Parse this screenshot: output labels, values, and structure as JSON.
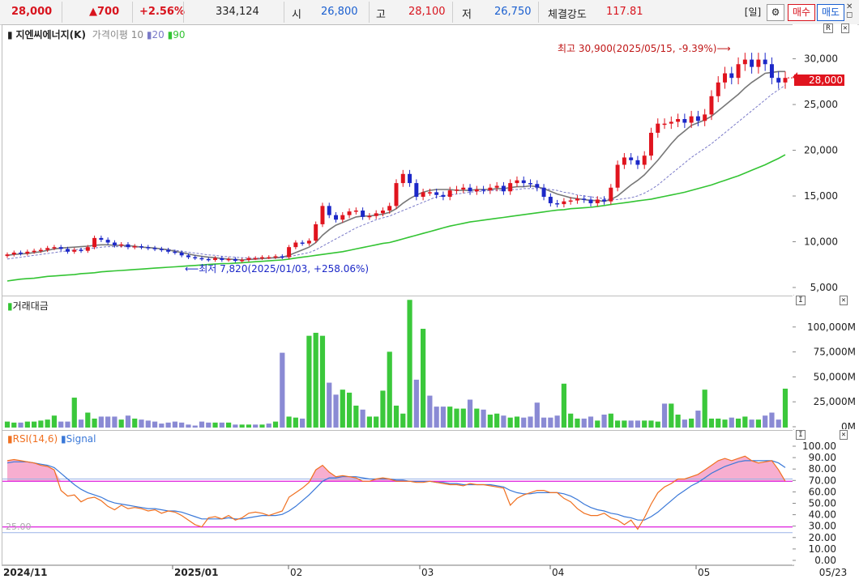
{
  "top": {
    "price": "28,000",
    "change": "▲700",
    "pct": "+2.56%",
    "volume": "334,124",
    "open_label": "시",
    "open": "26,800",
    "high_label": "고",
    "high": "28,100",
    "low_label": "저",
    "low": "26,750",
    "strength_label": "체결강도",
    "strength": "117.81",
    "period": "[일]",
    "gear_icon": "gear-icon",
    "buy": "매수",
    "sell": "매도"
  },
  "legend": {
    "name": "지엔씨에너지(K)",
    "ma_label": "가격이평 10",
    "ma20": "20",
    "ma90": "90",
    "volume_title": "거래대금",
    "rsi_title": "RSI(14,6)",
    "signal_title": "Signal"
  },
  "annotations": {
    "high_note": "최고 30,900(2025/05/15, -9.39%)⟶",
    "low_note": "⟵최저 7,820(2025/01/03, +258.06%)",
    "rsi_level": "25.00",
    "current_price_tag": "28,000"
  },
  "colors": {
    "up": "#e0141e",
    "down": "#1c28c8",
    "ma10": "#777777",
    "ma20": "#7a7ac8",
    "ma90": "#33c433",
    "vol_up": "#3bc83b",
    "vol_down": "#8a8ad4",
    "rsi": "#f07020",
    "signal": "#3a78d8",
    "band": "#e030e0",
    "fill": "#f6a0c8"
  },
  "chart_data": [
    {
      "type": "candlestick",
      "title": "지엔씨에너지(K)",
      "ylim": [
        5000,
        32000
      ],
      "yticks": [
        "30,000",
        "25,000",
        "20,000",
        "15,000",
        "10,000",
        "5,000"
      ],
      "xticks": [
        "2024/11",
        "2025/01",
        "02",
        "03",
        "04",
        "05",
        "05/23"
      ],
      "close": [
        8700,
        8900,
        8800,
        9000,
        9100,
        9200,
        9400,
        9500,
        9300,
        9000,
        9200,
        9100,
        9500,
        10500,
        10300,
        10000,
        9700,
        9800,
        9500,
        9600,
        9500,
        9400,
        9300,
        9200,
        9000,
        8900,
        8600,
        8400,
        8300,
        8200,
        8100,
        8300,
        8100,
        8200,
        8000,
        8100,
        8300,
        8300,
        8400,
        8400,
        8500,
        8400,
        9500,
        10000,
        9900,
        10200,
        12000,
        14000,
        13000,
        12500,
        13000,
        13400,
        13500,
        12800,
        12900,
        13200,
        13500,
        14000,
        16500,
        17500,
        16500,
        15000,
        15500,
        15500,
        15200,
        15000,
        15700,
        15800,
        16000,
        15600,
        15800,
        15700,
        16000,
        16200,
        15600,
        16500,
        16800,
        16500,
        16400,
        16000,
        15000,
        14300,
        14200,
        14500,
        14600,
        14800,
        14700,
        14300,
        14700,
        14500,
        16000,
        18500,
        19300,
        19000,
        18500,
        19500,
        22000,
        23000,
        23000,
        23200,
        23500,
        23100,
        23800,
        23300,
        24000,
        26000,
        27500,
        28500,
        28000,
        29500,
        30000,
        29200,
        30000,
        29500,
        28000,
        27500,
        28000
      ],
      "ma10": [
        8600,
        8700,
        8750,
        8800,
        8900,
        9000,
        9150,
        9300,
        9400,
        9450,
        9500,
        9550,
        9600,
        9700,
        9750,
        9750,
        9700,
        9700,
        9650,
        9600,
        9500,
        9450,
        9400,
        9300,
        9200,
        9050,
        8900,
        8750,
        8600,
        8500,
        8400,
        8350,
        8250,
        8200,
        8150,
        8100,
        8150,
        8200,
        8250,
        8300,
        8350,
        8400,
        8600,
        8900,
        9200,
        9500,
        10000,
        10800,
        11400,
        11900,
        12200,
        12500,
        12800,
        12900,
        12900,
        13000,
        13100,
        13300,
        13700,
        14300,
        14800,
        15200,
        15500,
        15700,
        15800,
        15800,
        15800,
        15700,
        15700,
        15700,
        15800,
        15800,
        15800,
        15900,
        15900,
        16000,
        16100,
        16100,
        16200,
        16100,
        15900,
        15600,
        15300,
        15100,
        14900,
        14800,
        14700,
        14600,
        14600,
        14500,
        14700,
        15100,
        15700,
        16300,
        16800,
        17400,
        18200,
        19000,
        19900,
        20800,
        21600,
        22200,
        22800,
        23100,
        23400,
        23800,
        24400,
        25000,
        25600,
        26200,
        26900,
        27500,
        28000,
        28500,
        28600,
        28700,
        28700
      ],
      "ma20": [
        8200,
        8300,
        8400,
        8500,
        8600,
        8700,
        8800,
        8900,
        9000,
        9100,
        9200,
        9300,
        9350,
        9400,
        9500,
        9550,
        9550,
        9550,
        9550,
        9500,
        9500,
        9450,
        9400,
        9300,
        9250,
        9150,
        9050,
        8950,
        8850,
        8750,
        8650,
        8600,
        8500,
        8450,
        8400,
        8350,
        8300,
        8300,
        8300,
        8300,
        8300,
        8350,
        8450,
        8600,
        8750,
        8900,
        9200,
        9600,
        10000,
        10400,
        10800,
        11200,
        11600,
        11900,
        12200,
        12500,
        12700,
        12900,
        13200,
        13500,
        13800,
        14100,
        14400,
        14700,
        15000,
        15100,
        15200,
        15300,
        15400,
        15500,
        15600,
        15600,
        15700,
        15700,
        15700,
        15800,
        15800,
        15900,
        15900,
        15900,
        15900,
        15800,
        15700,
        15500,
        15400,
        15200,
        15100,
        15000,
        14900,
        14800,
        14700,
        14700,
        14800,
        14900,
        15100,
        15400,
        15800,
        16300,
        16900,
        17500,
        18100,
        18700,
        19300,
        19800,
        20300,
        20800,
        21400,
        22000,
        22600,
        23200,
        23800,
        24400,
        25000,
        25600,
        26200,
        26700,
        27200
      ],
      "ma90": [
        5800,
        5900,
        6000,
        6050,
        6100,
        6200,
        6300,
        6350,
        6400,
        6450,
        6500,
        6600,
        6650,
        6700,
        6800,
        6850,
        6900,
        6950,
        7000,
        7050,
        7100,
        7150,
        7200,
        7250,
        7300,
        7350,
        7400,
        7450,
        7500,
        7550,
        7600,
        7650,
        7700,
        7700,
        7750,
        7800,
        7850,
        7900,
        7950,
        8000,
        8050,
        8100,
        8200,
        8300,
        8400,
        8500,
        8600,
        8700,
        8800,
        8900,
        9000,
        9150,
        9300,
        9450,
        9600,
        9750,
        9900,
        10000,
        10200,
        10400,
        10600,
        10800,
        11000,
        11200,
        11400,
        11600,
        11800,
        11950,
        12100,
        12250,
        12350,
        12450,
        12550,
        12650,
        12750,
        12850,
        12950,
        13050,
        13150,
        13250,
        13350,
        13450,
        13550,
        13600,
        13700,
        13750,
        13800,
        13850,
        13950,
        14050,
        14150,
        14250,
        14350,
        14450,
        14550,
        14650,
        14750,
        14900,
        15050,
        15200,
        15350,
        15500,
        15700,
        15900,
        16100,
        16300,
        16550,
        16800,
        17050,
        17300,
        17600,
        17900,
        18200,
        18500,
        18850,
        19200,
        19600
      ]
    },
    {
      "type": "bar",
      "title": "거래대금",
      "ylim": [
        0,
        125000
      ],
      "yticks": [
        "100,000M",
        "75,000M",
        "50,000M",
        "25,000M",
        "0M"
      ],
      "values": [
        6000,
        5000,
        5000,
        6000,
        6000,
        7000,
        8000,
        12000,
        6000,
        6000,
        30000,
        8000,
        15000,
        9000,
        11000,
        11000,
        11000,
        8000,
        12000,
        9000,
        8000,
        7000,
        6000,
        4000,
        5000,
        6000,
        5000,
        3000,
        2000,
        6000,
        5000,
        5000,
        5000,
        5000,
        3000,
        3000,
        3000,
        3000,
        3000,
        4000,
        6000,
        75000,
        11000,
        10000,
        9000,
        92000,
        95000,
        92000,
        45000,
        33000,
        38000,
        35000,
        22000,
        18000,
        11000,
        11000,
        37000,
        76000,
        22000,
        14000,
        128000,
        48000,
        99000,
        32000,
        21000,
        21000,
        21000,
        19000,
        19000,
        28000,
        19000,
        18000,
        13000,
        14000,
        12000,
        10000,
        11000,
        10000,
        11000,
        25000,
        10000,
        10000,
        12000,
        44000,
        14000,
        9000,
        9000,
        11000,
        7000,
        13000,
        14000,
        7000,
        7000,
        7000,
        7000,
        7000,
        7000,
        6000,
        24000,
        24000,
        13000,
        8000,
        9000,
        17000,
        38000,
        9000,
        9000,
        8000,
        10000,
        9000,
        11000,
        8000,
        8000,
        12000,
        15000,
        8000,
        39000
      ],
      "up_mask": [
        1,
        1,
        0,
        1,
        1,
        1,
        1,
        1,
        0,
        0,
        1,
        0,
        1,
        1,
        0,
        0,
        0,
        1,
        0,
        1,
        0,
        0,
        0,
        0,
        0,
        0,
        0,
        0,
        0,
        0,
        0,
        1,
        0,
        1,
        0,
        1,
        1,
        0,
        1,
        0,
        1,
        0,
        1,
        1,
        0,
        1,
        1,
        1,
        0,
        0,
        1,
        1,
        1,
        0,
        1,
        1,
        1,
        1,
        1,
        1,
        1,
        0,
        1,
        0,
        0,
        0,
        1,
        1,
        1,
        0,
        1,
        0,
        1,
        1,
        0,
        1,
        1,
        0,
        0,
        0,
        0,
        0,
        0,
        1,
        1,
        1,
        0,
        0,
        1,
        0,
        1,
        1,
        1,
        0,
        0,
        1,
        1,
        1,
        0,
        1,
        1,
        0,
        1,
        0,
        1,
        1,
        1,
        1,
        0,
        1,
        1,
        0,
        1,
        0,
        0,
        0,
        1
      ]
    },
    {
      "type": "line",
      "title": "RSI(14,6)",
      "ylim": [
        0,
        100
      ],
      "yticks": [
        "100.00",
        "90.00",
        "80.00",
        "70.00",
        "60.00",
        "50.00",
        "40.00",
        "30.00",
        "20.00",
        "10.00",
        "0.00"
      ],
      "guides": [
        70,
        25
      ],
      "series": [
        {
          "name": "RSI(14,6)",
          "values": [
            88,
            89,
            88,
            87,
            86,
            84,
            83,
            80,
            62,
            57,
            58,
            52,
            55,
            56,
            53,
            48,
            45,
            49,
            46,
            47,
            46,
            44,
            45,
            42,
            44,
            43,
            40,
            36,
            32,
            30,
            38,
            39,
            37,
            40,
            36,
            38,
            42,
            43,
            42,
            40,
            42,
            44,
            56,
            60,
            64,
            69,
            80,
            84,
            78,
            74,
            75,
            74,
            73,
            70,
            70,
            72,
            73,
            72,
            70,
            70,
            70,
            69,
            69,
            70,
            69,
            68,
            67,
            67,
            66,
            68,
            67,
            67,
            66,
            65,
            64,
            49,
            55,
            58,
            60,
            62,
            62,
            60,
            60,
            55,
            52,
            46,
            42,
            40,
            40,
            42,
            38,
            36,
            32,
            36,
            28,
            38,
            50,
            60,
            65,
            68,
            72,
            72,
            74,
            76,
            80,
            84,
            88,
            90,
            88,
            90,
            92,
            88,
            86,
            87,
            88,
            80,
            70
          ]
        },
        {
          "name": "Signal",
          "values": [
            86,
            87,
            87,
            87,
            86,
            85,
            84,
            82,
            77,
            72,
            67,
            63,
            60,
            58,
            56,
            53,
            51,
            50,
            49,
            48,
            47,
            46,
            46,
            45,
            44,
            44,
            43,
            41,
            39,
            37,
            37,
            37,
            37,
            38,
            37,
            37,
            38,
            39,
            40,
            40,
            40,
            41,
            44,
            48,
            53,
            58,
            64,
            70,
            73,
            73,
            74,
            74,
            74,
            73,
            72,
            72,
            72,
            72,
            71,
            71,
            70,
            70,
            70,
            70,
            69,
            69,
            68,
            68,
            67,
            67,
            67,
            67,
            67,
            66,
            65,
            62,
            60,
            59,
            59,
            60,
            60,
            60,
            60,
            59,
            57,
            54,
            50,
            47,
            45,
            44,
            42,
            41,
            39,
            38,
            36,
            36,
            39,
            43,
            48,
            53,
            58,
            62,
            66,
            69,
            73,
            77,
            80,
            83,
            85,
            87,
            88,
            88,
            88,
            88,
            88,
            86,
            82
          ]
        }
      ]
    }
  ]
}
